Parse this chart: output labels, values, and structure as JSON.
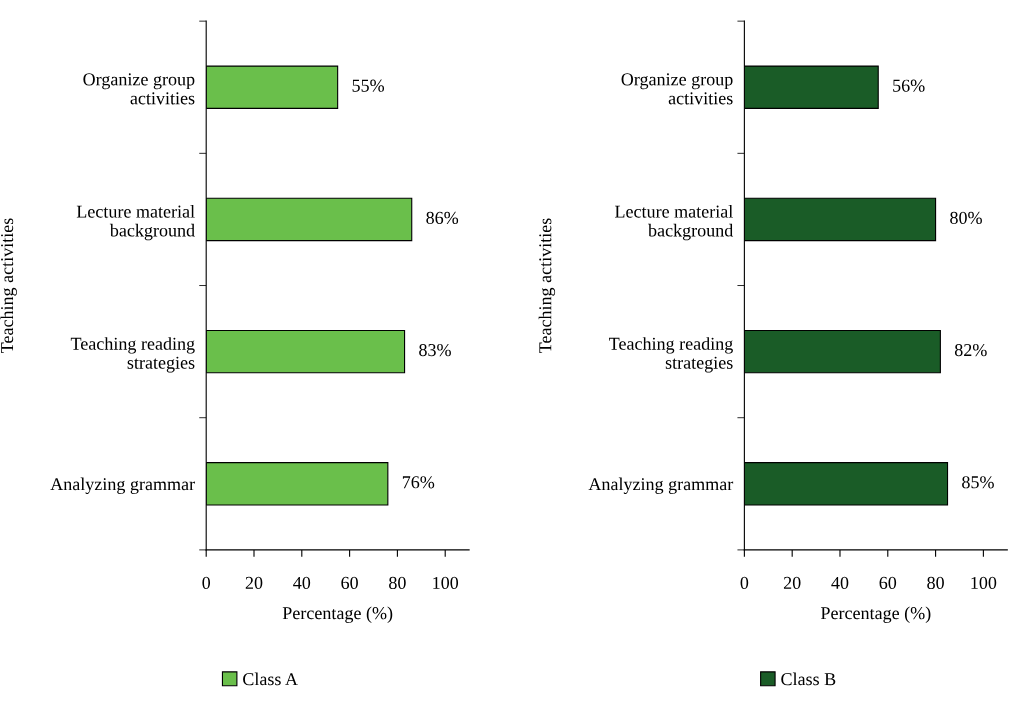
{
  "chart_data": [
    {
      "type": "bar",
      "orientation": "horizontal",
      "categories": [
        "Organize group\nactivities",
        "Lecture material\nbackground",
        "Teaching reading\nstrategies",
        "Analyzing grammar"
      ],
      "series": [
        {
          "name": "Class A",
          "color": "#6abf4b",
          "values": [
            55,
            86,
            83,
            76
          ],
          "value_labels": [
            "55%",
            "86%",
            "83%",
            "76%"
          ]
        }
      ],
      "xlabel": "Percentage (%)",
      "ylabel": "Teaching activities",
      "xlim": [
        0,
        110
      ],
      "xticks": [
        0,
        20,
        40,
        60,
        80,
        100
      ],
      "legend": "bottom",
      "grid": false
    },
    {
      "type": "bar",
      "orientation": "horizontal",
      "categories": [
        "Organize group\nactivities",
        "Lecture material\nbackground",
        "Teaching reading\nstrategies",
        "Analyzing grammar"
      ],
      "series": [
        {
          "name": "Class B",
          "color": "#1a5c27",
          "values": [
            56,
            80,
            82,
            85
          ],
          "value_labels": [
            "56%",
            "80%",
            "82%",
            "85%"
          ]
        }
      ],
      "xlabel": "Percentage (%)",
      "ylabel": "Teaching activities",
      "xlim": [
        0,
        110
      ],
      "xticks": [
        0,
        20,
        40,
        60,
        80,
        100
      ],
      "legend": "bottom",
      "grid": false
    }
  ]
}
